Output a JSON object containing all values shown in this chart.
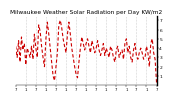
{
  "title": "Milwaukee Weather Solar Radiation per Day KW/m2",
  "title_fontsize": 4.2,
  "ylabel_fontsize": 3.2,
  "xlabel_fontsize": 2.8,
  "background_color": "#ffffff",
  "line_color": "#cc0000",
  "grid_color": "#aaaaaa",
  "ylim": [
    0,
    7.5
  ],
  "yticks": [
    1,
    2,
    3,
    4,
    5,
    6,
    7
  ],
  "values": [
    4.2,
    3.0,
    4.8,
    2.5,
    5.2,
    3.8,
    4.5,
    2.2,
    4.0,
    3.5,
    3.0,
    4.2,
    2.8,
    5.5,
    4.0,
    3.0,
    6.5,
    5.8,
    4.2,
    3.0,
    2.0,
    5.0,
    6.8,
    5.5,
    4.0,
    2.5,
    1.0,
    0.5,
    2.0,
    3.5,
    6.5,
    7.0,
    6.2,
    5.0,
    4.2,
    3.5,
    5.5,
    6.8,
    5.5,
    4.0,
    3.0,
    2.0,
    1.2,
    0.8,
    2.5,
    4.0,
    5.2,
    4.5,
    3.8,
    4.5,
    5.0,
    4.2,
    3.5,
    4.8,
    4.2,
    3.5,
    4.0,
    4.8,
    3.8,
    3.2,
    3.8,
    4.5,
    3.2,
    4.0,
    3.5,
    3.0,
    4.2,
    3.8,
    3.0,
    2.5,
    3.8,
    4.2,
    3.0,
    3.5,
    3.8,
    2.8,
    4.5,
    5.0,
    3.5,
    4.2,
    3.0,
    2.5,
    3.8,
    4.5,
    3.2,
    2.8,
    3.5,
    4.0,
    3.5,
    2.8,
    3.0,
    4.2,
    3.5,
    2.0,
    4.5,
    5.0,
    3.5,
    2.8,
    0.3
  ],
  "x_tick_positions": [
    0,
    7,
    14,
    21,
    28,
    35,
    42,
    49,
    56,
    63,
    70,
    77,
    84,
    91,
    98
  ],
  "x_tick_labels": [
    "7",
    "1",
    "7",
    "1",
    "7",
    "1",
    "7",
    "1",
    "7",
    "1",
    "7",
    "1",
    "7",
    "1",
    "7"
  ],
  "vgrid_positions": [
    7,
    14,
    21,
    28,
    35,
    42,
    49,
    56,
    63,
    70,
    77,
    84,
    91
  ]
}
